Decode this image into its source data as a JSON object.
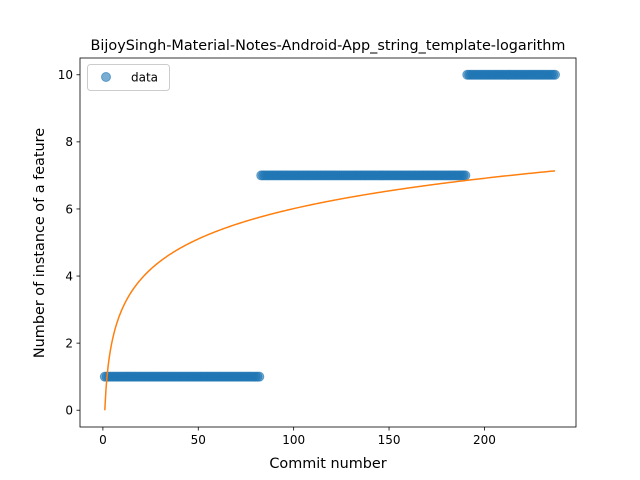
{
  "chart_data": {
    "type": "scatter",
    "title": "BijoySingh-Material-Notes-Android-App_string_template-logarithm",
    "xlabel": "Commit number",
    "ylabel": "Number of instance of a feature",
    "xlim": [
      -12,
      248
    ],
    "ylim": [
      -0.5,
      10.5
    ],
    "xticks": [
      0,
      50,
      100,
      150,
      200
    ],
    "yticks": [
      0,
      2,
      4,
      6,
      8,
      10
    ],
    "legend_position": "top-left",
    "grid": false,
    "series": [
      {
        "name": "data",
        "kind": "scatter",
        "color": "#1f77b4",
        "segments": [
          {
            "x_start": 1,
            "x_end": 82,
            "y": 1
          },
          {
            "x_start": 83,
            "x_end": 190,
            "y": 7
          },
          {
            "x_start": 191,
            "x_end": 237,
            "y": 10
          }
        ]
      },
      {
        "kind": "line",
        "color": "#ff7f0e",
        "model": "logarithmic",
        "x_range": [
          1,
          237
        ],
        "a": 1.305,
        "b": 0.0
      }
    ]
  }
}
